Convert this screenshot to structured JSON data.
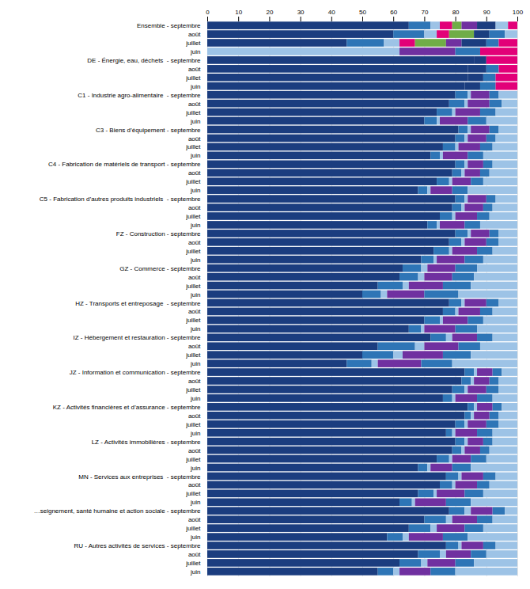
{
  "chart_data": {
    "type": "bar",
    "orientation": "horizontal",
    "stacked": true,
    "grid": true,
    "categories": [
      "Ensemble - septembre",
      "août",
      "juillet",
      "juin",
      "DE - Énergie, eau, déchets  - septembre",
      "août",
      "juillet",
      "juin",
      "C1 - Industrie agro-alimentaire  - septembre",
      "août",
      "juillet",
      "juin",
      "C3 - Biens d’équipement - septembre",
      "août",
      "juillet",
      "juin",
      "C4 - Fabrication de matériels de transport - septembre",
      "août",
      "juillet",
      "juin",
      "C5 - Fabrication d’autres produits industriels  - septembre",
      "août",
      "juillet",
      "juin",
      "FZ - Construction - septembre",
      "août",
      "juillet",
      "juin",
      "GZ - Commerce - septembre",
      "août",
      "juillet",
      "juin",
      "HZ - Transports et entreposage  - septembre",
      "août",
      "juillet",
      "juin",
      "IZ - Hébergement et restauration - septembre",
      "août",
      "juillet",
      "juin",
      "JZ - Information et communication - septembre",
      "août",
      "juillet",
      "juin",
      "KZ - Activités financières et d’assurance - septembre",
      "août",
      "juillet",
      "juin",
      "LZ - Activités immobilières - septembre",
      "août",
      "juillet",
      "juin",
      "MN - Services aux entreprises  - septembre",
      "août",
      "juillet",
      "juin",
      "…seignement, santé humaine et action sociale - septembre",
      "août",
      "juillet",
      "juin",
      "RU - Autres activités de services - septembre",
      "août",
      "juillet",
      "juin"
    ],
    "series": [
      {
        "color": "#1b3d7f",
        "values": [
          65,
          60,
          45,
          0,
          86,
          84,
          84,
          83,
          80,
          78,
          74,
          70,
          81,
          80,
          76,
          72,
          80,
          79,
          74,
          68,
          80,
          79,
          75,
          71,
          80,
          78,
          73,
          69,
          63,
          62,
          55,
          50,
          78,
          76,
          70,
          65,
          72,
          55,
          50,
          45,
          83,
          82,
          79,
          76,
          84,
          83,
          80,
          77,
          80,
          79,
          74,
          68,
          77,
          75,
          68,
          62,
          78,
          70,
          65,
          58,
          77,
          68,
          62,
          55
        ]
      },
      {
        "color": "#2e75b6",
        "values": [
          7,
          10,
          12,
          0,
          0,
          0,
          0,
          0,
          4,
          5,
          5,
          4,
          3,
          3,
          4,
          3,
          3,
          3,
          4,
          3,
          3,
          3,
          4,
          3,
          4,
          4,
          5,
          4,
          6,
          6,
          8,
          6,
          4,
          4,
          5,
          4,
          5,
          12,
          10,
          8,
          3,
          3,
          4,
          3,
          2,
          2,
          3,
          2,
          3,
          3,
          4,
          3,
          4,
          4,
          5,
          4,
          5,
          7,
          7,
          5,
          4,
          7,
          7,
          5
        ]
      },
      {
        "color": "#9dc3e6",
        "values": [
          3,
          4,
          5,
          62,
          0,
          0,
          0,
          0,
          1,
          1,
          1,
          1,
          1,
          1,
          1,
          1,
          1,
          1,
          1,
          1,
          1,
          1,
          1,
          1,
          1,
          1,
          1,
          1,
          2,
          2,
          2,
          2,
          1,
          1,
          1,
          1,
          2,
          3,
          3,
          2,
          1,
          1,
          1,
          1,
          1,
          1,
          1,
          1,
          1,
          1,
          1,
          1,
          1,
          1,
          1,
          1,
          2,
          2,
          2,
          2,
          1,
          2,
          2,
          2
        ]
      },
      {
        "color": "#e20078",
        "values": [
          4,
          4,
          5,
          0,
          0,
          0,
          0,
          0,
          0,
          0,
          0,
          0,
          0,
          0,
          0,
          0,
          0,
          0,
          0,
          0,
          0,
          0,
          0,
          0,
          0,
          0,
          0,
          0,
          0,
          0,
          0,
          0,
          0,
          0,
          0,
          0,
          0,
          0,
          0,
          0,
          0,
          0,
          0,
          0,
          0,
          0,
          0,
          0,
          0,
          0,
          0,
          0,
          0,
          0,
          0,
          0,
          0,
          0,
          0,
          0,
          0,
          0,
          0,
          0
        ]
      },
      {
        "color": "#70ad47",
        "values": [
          3,
          8,
          10,
          0,
          0,
          0,
          0,
          0,
          0,
          0,
          0,
          0,
          0,
          0,
          0,
          0,
          0,
          0,
          0,
          0,
          0,
          0,
          0,
          0,
          0,
          0,
          0,
          0,
          0,
          0,
          0,
          0,
          0,
          0,
          0,
          0,
          0,
          0,
          0,
          0,
          0,
          0,
          0,
          0,
          0,
          0,
          0,
          0,
          0,
          0,
          0,
          0,
          0,
          0,
          0,
          0,
          0,
          0,
          0,
          0,
          0,
          0,
          0,
          0
        ]
      },
      {
        "color": "#7030a0",
        "values": [
          5,
          0,
          5,
          18,
          0,
          0,
          0,
          0,
          6,
          7,
          8,
          9,
          6,
          6,
          7,
          8,
          5,
          5,
          6,
          7,
          6,
          6,
          7,
          8,
          6,
          7,
          8,
          9,
          9,
          9,
          11,
          12,
          7,
          7,
          8,
          10,
          8,
          11,
          13,
          14,
          5,
          5,
          6,
          7,
          5,
          5,
          6,
          7,
          5,
          5,
          6,
          7,
          7,
          7,
          9,
          10,
          7,
          8,
          9,
          11,
          7,
          8,
          9,
          10
        ]
      },
      {
        "color": "#1b3d7f",
        "values": [
          6,
          5,
          8,
          0,
          4,
          6,
          5,
          5,
          0,
          0,
          0,
          0,
          0,
          0,
          0,
          0,
          0,
          0,
          0,
          0,
          0,
          0,
          0,
          0,
          0,
          0,
          0,
          0,
          0,
          0,
          0,
          0,
          0,
          0,
          0,
          0,
          0,
          0,
          0,
          0,
          0,
          0,
          0,
          0,
          0,
          0,
          0,
          0,
          0,
          0,
          0,
          0,
          0,
          0,
          0,
          0,
          0,
          0,
          0,
          0,
          0,
          0,
          0,
          0
        ]
      },
      {
        "color": "#2e75b6",
        "values": [
          0,
          5,
          4,
          8,
          0,
          4,
          4,
          5,
          3,
          4,
          5,
          6,
          3,
          3,
          4,
          5,
          3,
          3,
          4,
          5,
          3,
          3,
          4,
          5,
          3,
          4,
          5,
          6,
          7,
          7,
          9,
          11,
          4,
          4,
          5,
          7,
          5,
          7,
          9,
          10,
          3,
          3,
          4,
          5,
          3,
          3,
          4,
          5,
          3,
          3,
          5,
          6,
          4,
          4,
          6,
          8,
          4,
          5,
          6,
          8,
          4,
          5,
          6,
          8
        ]
      },
      {
        "color": "#9dc3e6",
        "values": [
          4,
          4,
          0,
          0,
          0,
          0,
          0,
          0,
          6,
          5,
          7,
          10,
          6,
          7,
          8,
          11,
          8,
          9,
          11,
          16,
          7,
          8,
          9,
          12,
          6,
          6,
          8,
          11,
          13,
          14,
          15,
          19,
          6,
          8,
          11,
          13,
          8,
          12,
          15,
          21,
          5,
          6,
          6,
          8,
          5,
          6,
          6,
          8,
          8,
          9,
          10,
          15,
          7,
          9,
          11,
          15,
          4,
          8,
          11,
          16,
          7,
          10,
          14,
          20
        ]
      },
      {
        "color": "#e20078",
        "values": [
          3,
          0,
          6,
          12,
          10,
          6,
          7,
          7,
          0,
          0,
          0,
          0,
          0,
          0,
          0,
          0,
          0,
          0,
          0,
          0,
          0,
          0,
          0,
          0,
          0,
          0,
          0,
          0,
          0,
          0,
          0,
          0,
          0,
          0,
          0,
          0,
          0,
          0,
          0,
          0,
          0,
          0,
          0,
          0,
          0,
          0,
          0,
          0,
          0,
          0,
          0,
          0,
          0,
          0,
          0,
          0,
          0,
          0,
          0,
          0,
          0,
          0,
          0,
          0
        ]
      }
    ],
    "xlim": [
      0,
      100
    ],
    "xticks": [
      0,
      10,
      20,
      30,
      40,
      50,
      60,
      70,
      80,
      90,
      100
    ]
  }
}
